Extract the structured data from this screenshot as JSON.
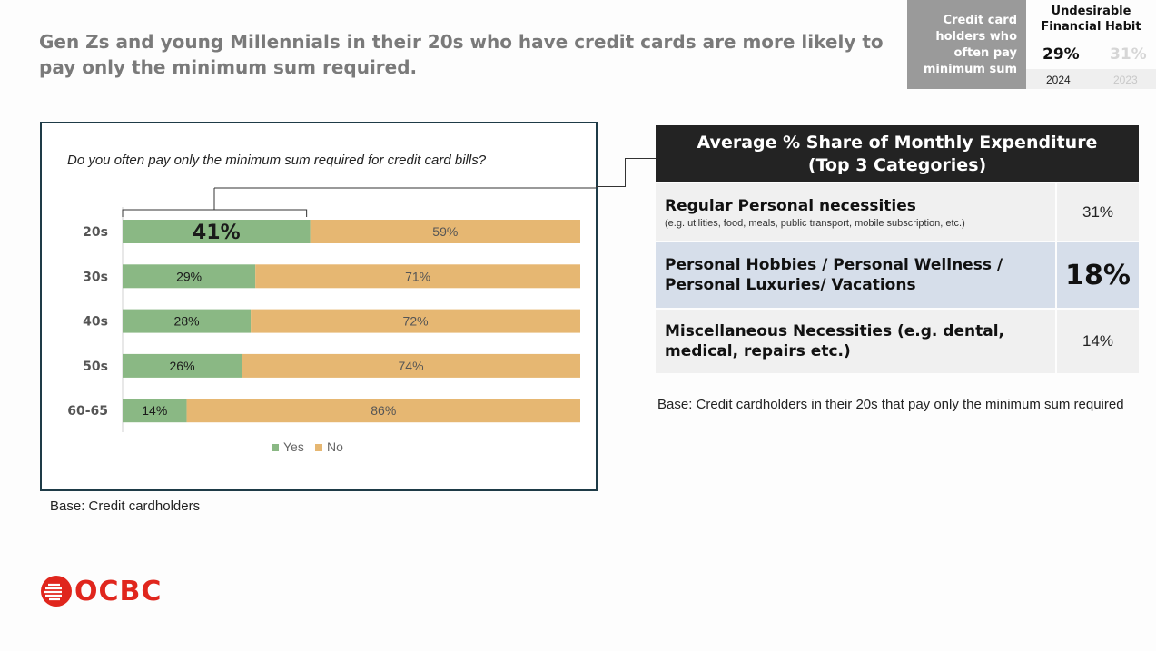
{
  "title": "Gen Zs and young Millennials in their 20s who have credit cards are more likely to pay only the minimum sum required.",
  "kpi": {
    "label": "Credit card holders who often pay minimum sum",
    "heading": "Undesirable Financial Habit",
    "current_value": "29%",
    "previous_value": "31%",
    "current_year": "2024",
    "previous_year": "2023"
  },
  "chart_data": {
    "type": "bar",
    "orientation": "horizontal-stacked-100",
    "title": "Do you often pay only the minimum sum required for credit card bills?",
    "categories": [
      "20s",
      "30s",
      "40s",
      "50s",
      "60-65"
    ],
    "series": [
      {
        "name": "Yes",
        "values": [
          41,
          29,
          28,
          26,
          14
        ],
        "color": "#8ab884",
        "labels": [
          "41%",
          "29%",
          "28%",
          "26%",
          "14%"
        ]
      },
      {
        "name": "No",
        "values": [
          59,
          71,
          72,
          74,
          86
        ],
        "color": "#e6b772",
        "labels": [
          "59%",
          "71%",
          "72%",
          "74%",
          "86%"
        ]
      }
    ],
    "xlim": [
      0,
      100
    ],
    "legend": "bottom",
    "grid": false
  },
  "chart_base": "Base: Credit cardholders",
  "table": {
    "heading_line1": "Average % Share of Monthly Expenditure",
    "heading_line2": "(Top 3 Categories)",
    "rows": [
      {
        "name": "Regular Personal necessities",
        "note": "(e.g. utilities, food, meals, public transport, mobile subscription, etc.)",
        "value": "31%"
      },
      {
        "name": "Personal Hobbies / Personal Wellness / Personal Luxuries/ Vacations",
        "note": "",
        "value": "18%"
      },
      {
        "name": "Miscellaneous Necessities (e.g. dental, medical, repairs etc.)",
        "note": "",
        "value": "14%"
      }
    ],
    "base": "Base: Credit cardholders in their 20s that pay only the minimum sum required"
  },
  "logo": {
    "text": "OCBC",
    "color": "#e0261d"
  }
}
